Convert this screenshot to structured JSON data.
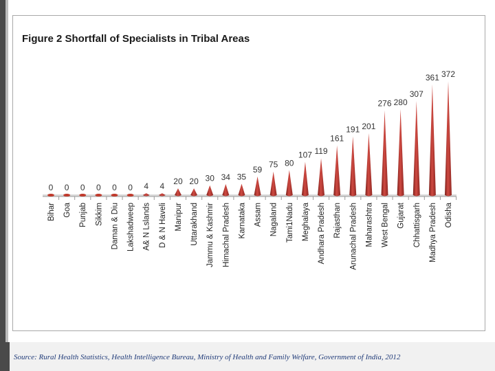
{
  "chart_data": {
    "type": "bar",
    "title": "Figure 2 Shortfall of Specialists in Tribal Areas",
    "categories": [
      "Bihar",
      "Goa",
      "Punjab",
      "Sikkim",
      "Daman & Diu",
      "Lakshadweep",
      "A& N Lslands",
      "D & N Haveli",
      "Manipur",
      "Uttarakhand",
      "Jammu & Kashmir",
      "Himachal Pradesh",
      "Karnataka",
      "Assam",
      "Nagaland",
      "Tami1Nadu",
      "Meghalaya",
      "Andhara Pradesh",
      "Rajasthan",
      "Arunachal Pradesh",
      "Maharashtra",
      "West Bengal",
      "Gujarat",
      "Chhattisgarh",
      "Madhya Pradesh",
      "Odisha"
    ],
    "values": [
      0,
      0,
      0,
      0,
      0,
      0,
      4,
      4,
      20,
      20,
      30,
      34,
      35,
      59,
      75,
      80,
      107,
      119,
      161,
      191,
      201,
      276,
      280,
      307,
      361,
      372
    ],
    "xlabel": "",
    "ylabel": "",
    "ylim": [
      0,
      372
    ],
    "grid": false,
    "bar_color": "#c0392b"
  },
  "source": "Source: Rural Health Statistics, Health Intelligence Bureau, Ministry of Health and Family Welfare, Government of India, 2012"
}
